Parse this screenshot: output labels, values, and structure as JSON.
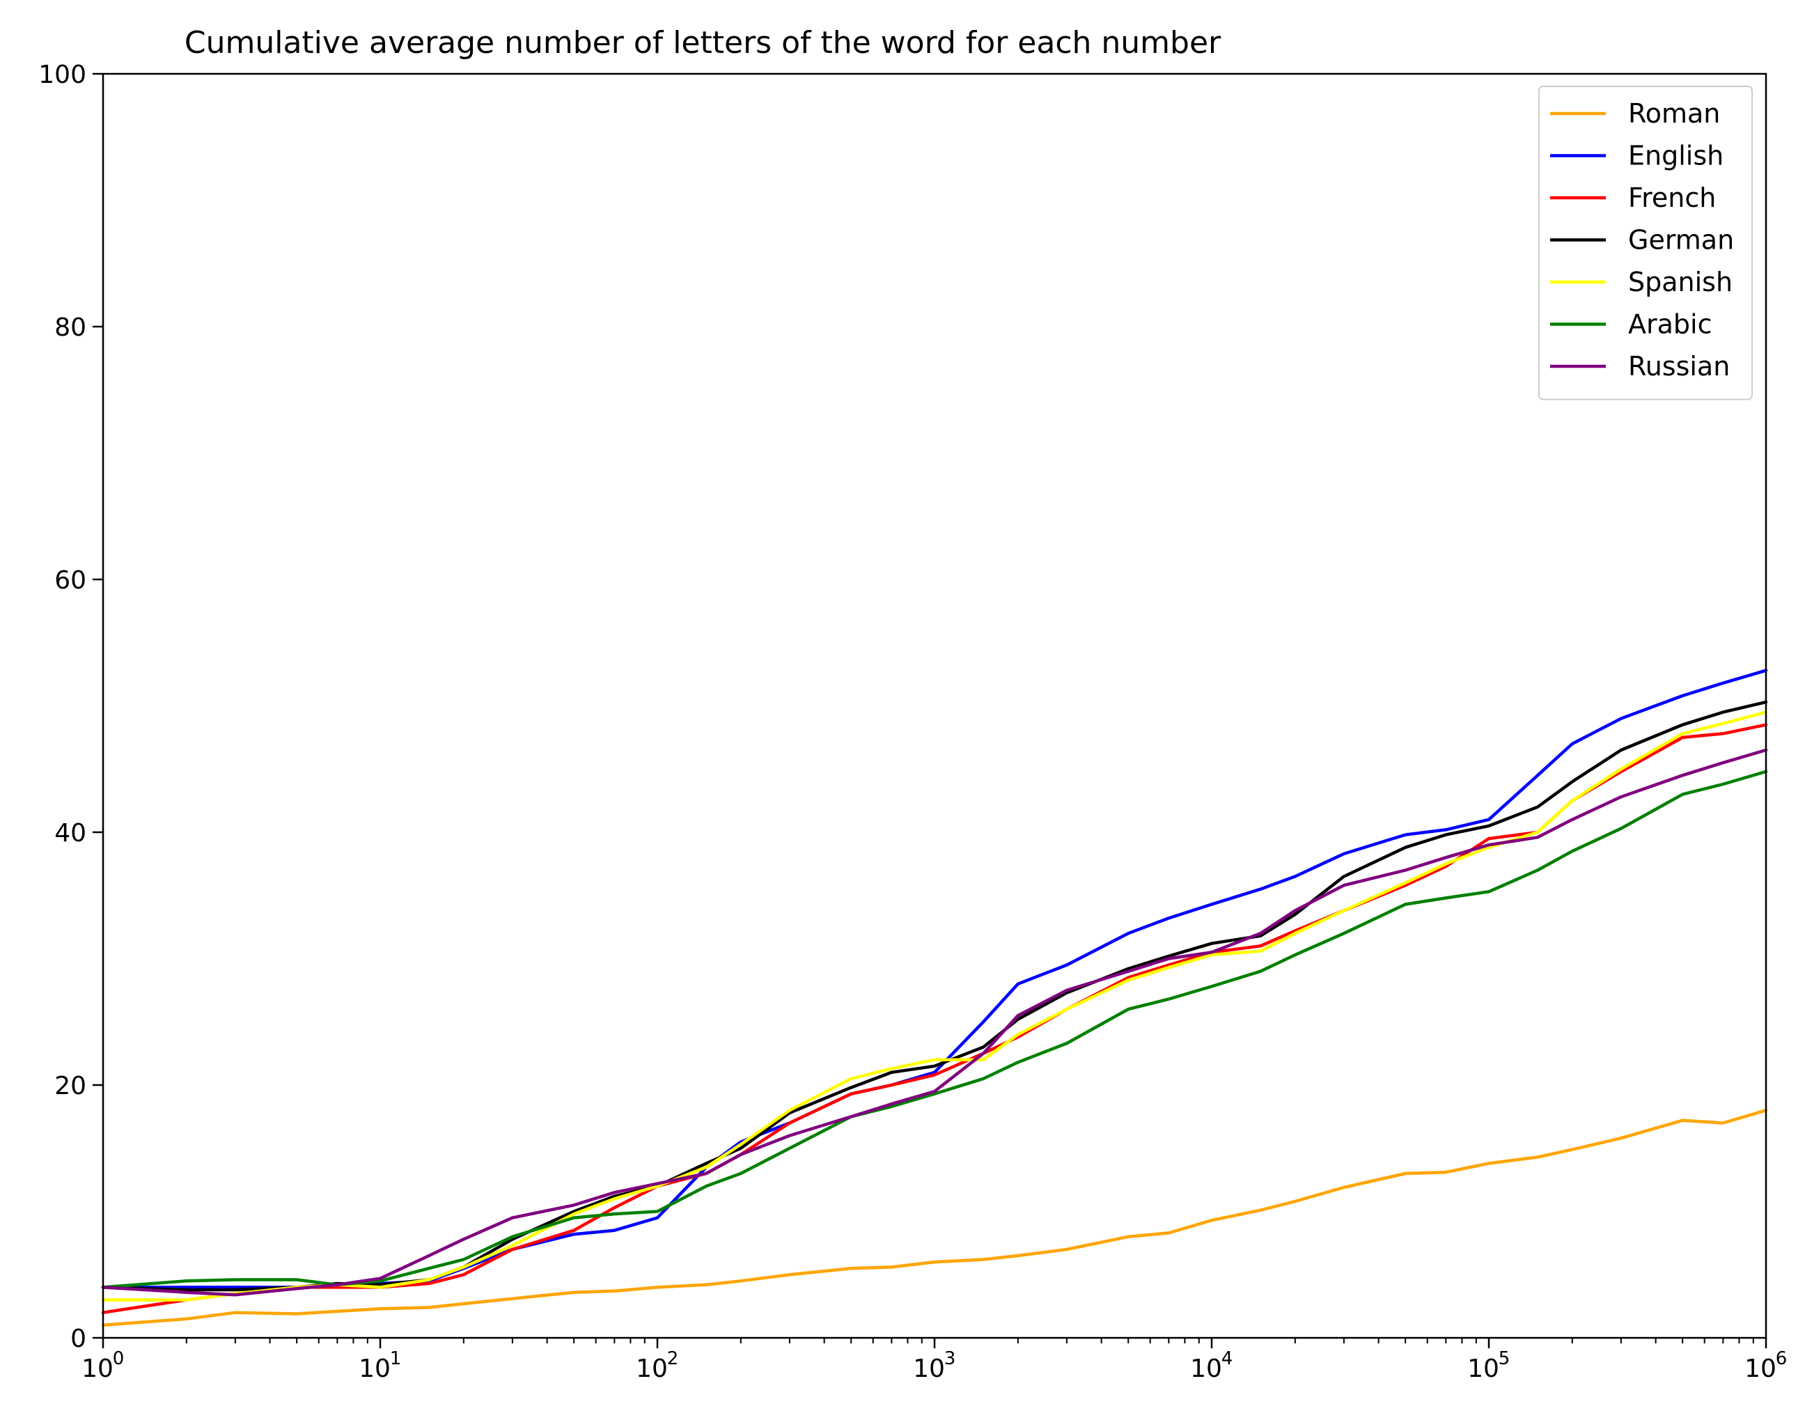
{
  "chart_data": {
    "type": "line",
    "title": "Cumulative average number of letters of the word for each number",
    "xlabel": "",
    "ylabel": "",
    "x_scale": "log",
    "xlim": [
      1,
      1000000
    ],
    "ylim": [
      0,
      100
    ],
    "grid": false,
    "legend_position": "top-right",
    "x_ticks": [
      {
        "value": 1,
        "base": "10",
        "exp": "0"
      },
      {
        "value": 10,
        "base": "10",
        "exp": "1"
      },
      {
        "value": 100,
        "base": "10",
        "exp": "2"
      },
      {
        "value": 1000,
        "base": "10",
        "exp": "3"
      },
      {
        "value": 10000,
        "base": "10",
        "exp": "4"
      },
      {
        "value": 100000,
        "base": "10",
        "exp": "5"
      },
      {
        "value": 1000000,
        "base": "10",
        "exp": "6"
      }
    ],
    "y_ticks": [
      {
        "value": 0,
        "label": "0"
      },
      {
        "value": 20,
        "label": "20"
      },
      {
        "value": 40,
        "label": "40"
      },
      {
        "value": 60,
        "label": "60"
      },
      {
        "value": 80,
        "label": "80"
      },
      {
        "value": 100,
        "label": "100"
      }
    ],
    "x": [
      1,
      2,
      3,
      5,
      7,
      10,
      15,
      20,
      30,
      50,
      70,
      100,
      150,
      200,
      300,
      500,
      700,
      1000,
      1500,
      2000,
      3000,
      5000,
      7000,
      10000,
      15000,
      20000,
      30000,
      50000,
      70000,
      100000,
      150000,
      200000,
      300000,
      500000,
      700000,
      1000000
    ],
    "series": [
      {
        "name": "Roman",
        "color": "#FFA500",
        "values": [
          1.0,
          1.5,
          2.0,
          1.9,
          2.1,
          2.3,
          2.4,
          2.7,
          3.1,
          3.6,
          3.7,
          4.0,
          4.2,
          4.5,
          5.0,
          5.5,
          5.6,
          6.0,
          6.2,
          6.5,
          7.0,
          8.0,
          8.3,
          9.3,
          10.1,
          10.8,
          11.9,
          13.0,
          13.1,
          13.8,
          14.3,
          14.9,
          15.8,
          17.2,
          17.0,
          18.0
        ]
      },
      {
        "name": "English",
        "color": "#0000FF",
        "values": [
          4.0,
          4.0,
          4.0,
          4.0,
          4.2,
          4.3,
          4.5,
          5.5,
          7.0,
          8.2,
          8.5,
          9.5,
          13.5,
          15.5,
          17.0,
          19.3,
          20.0,
          21.0,
          25.0,
          28.0,
          29.5,
          32.0,
          33.2,
          34.3,
          35.5,
          36.5,
          38.3,
          39.8,
          40.2,
          41.0,
          44.5,
          47.0,
          49.0,
          50.8,
          51.8,
          52.8
        ]
      },
      {
        "name": "French",
        "color": "#FF0000",
        "values": [
          2.0,
          3.0,
          3.5,
          4.0,
          4.0,
          4.0,
          4.3,
          5.0,
          7.0,
          8.5,
          10.3,
          12.0,
          13.0,
          14.5,
          17.0,
          19.3,
          20.0,
          20.8,
          22.5,
          23.8,
          26.0,
          28.5,
          29.5,
          30.5,
          31.0,
          32.2,
          33.8,
          35.8,
          37.3,
          39.5,
          40.0,
          42.5,
          44.8,
          47.5,
          47.8,
          48.5
        ]
      },
      {
        "name": "German",
        "color": "#000000",
        "values": [
          4.0,
          3.8,
          3.8,
          4.0,
          4.3,
          4.2,
          4.6,
          5.6,
          7.8,
          10.0,
          11.2,
          12.0,
          13.8,
          15.0,
          17.8,
          19.8,
          21.0,
          21.5,
          23.0,
          25.2,
          27.3,
          29.2,
          30.2,
          31.2,
          31.8,
          33.5,
          36.5,
          38.8,
          39.8,
          40.5,
          42.0,
          44.0,
          46.5,
          48.5,
          49.5,
          50.3
        ]
      },
      {
        "name": "Spanish",
        "color": "#FFFF00",
        "values": [
          3.0,
          3.0,
          3.5,
          4.0,
          4.2,
          4.0,
          4.6,
          5.6,
          7.3,
          9.8,
          11.0,
          12.0,
          13.5,
          15.3,
          18.0,
          20.5,
          21.3,
          22.0,
          22.0,
          24.0,
          26.0,
          28.3,
          29.3,
          30.3,
          30.6,
          32.0,
          33.8,
          36.0,
          37.5,
          38.8,
          40.0,
          42.5,
          45.0,
          47.8,
          48.6,
          49.5
        ]
      },
      {
        "name": "Arabic",
        "color": "#008000",
        "values": [
          4.0,
          4.5,
          4.6,
          4.6,
          4.2,
          4.5,
          5.5,
          6.2,
          8.0,
          9.5,
          9.8,
          10.0,
          12.0,
          13.0,
          15.0,
          17.5,
          18.3,
          19.3,
          20.5,
          21.8,
          23.3,
          26.0,
          26.8,
          27.8,
          29.0,
          30.3,
          32.0,
          34.3,
          34.8,
          35.3,
          37.0,
          38.5,
          40.3,
          43.0,
          43.8,
          44.8
        ]
      },
      {
        "name": "Russian",
        "color": "#800080",
        "values": [
          4.0,
          3.6,
          3.4,
          3.9,
          4.2,
          4.7,
          6.5,
          7.8,
          9.5,
          10.5,
          11.5,
          12.2,
          13.0,
          14.5,
          16.0,
          17.5,
          18.5,
          19.5,
          22.5,
          25.5,
          27.5,
          29.0,
          30.0,
          30.5,
          32.0,
          33.8,
          35.8,
          37.0,
          38.0,
          39.0,
          39.6,
          41.0,
          42.8,
          44.5,
          45.5,
          46.5
        ]
      }
    ]
  }
}
